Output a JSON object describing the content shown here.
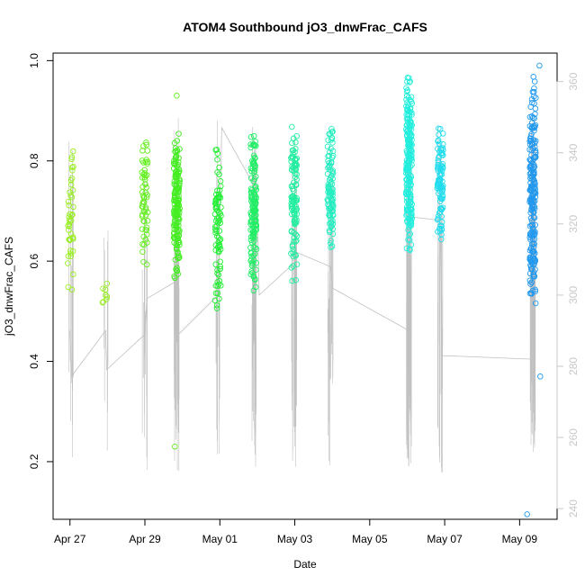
{
  "chart_data": {
    "type": "scatter",
    "title": "ATOM4 Southbound jO3_dnwFrac_CAFS",
    "xlabel": "Date",
    "ylabel": "jO3_dnwFrac_CAFS",
    "x_tick_labels": [
      "Apr 27",
      "Apr 29",
      "May 01",
      "May 03",
      "May 05",
      "May 07",
      "May 09"
    ],
    "x_tick_days": [
      0,
      2,
      4,
      6,
      8,
      10,
      12
    ],
    "x_origin_date": "Apr 27",
    "xlim_days": [
      -0.45,
      13.0
    ],
    "ylim": [
      0.085,
      1.015
    ],
    "y_ticks": [
      0.2,
      0.4,
      0.6,
      0.8,
      1.0
    ],
    "y_tick_labels": [
      "0.2",
      "0.4",
      "0.6",
      "0.8",
      "1.0"
    ],
    "y2lim": [
      237.0,
      368.0
    ],
    "y2_ticks": [
      240,
      260,
      280,
      300,
      320,
      340,
      360
    ],
    "y2_tick_labels": [
      "240",
      "260",
      "280",
      "300",
      "320",
      "340",
      "360"
    ],
    "line_color": "#c0c0c0",
    "clusters": [
      {
        "day": 0.02,
        "y_min": 0.51,
        "y_max": 0.87,
        "count": 45,
        "color": "#99ee22"
      },
      {
        "day": 0.95,
        "y_min": 0.515,
        "y_max": 0.575,
        "count": 8,
        "color": "#99ee22"
      },
      {
        "day": 2.0,
        "y_min": 0.585,
        "y_max": 0.86,
        "count": 60,
        "color": "#66ee22"
      },
      {
        "day": 2.85,
        "y_min": 0.55,
        "y_max": 0.87,
        "count": 160,
        "color": "#44ee22"
      },
      {
        "day": 3.95,
        "y_min": 0.485,
        "y_max": 0.86,
        "count": 80,
        "color": "#22ee33"
      },
      {
        "day": 4.9,
        "y_min": 0.53,
        "y_max": 0.875,
        "count": 140,
        "color": "#22ee66"
      },
      {
        "day": 5.98,
        "y_min": 0.55,
        "y_max": 0.875,
        "count": 110,
        "color": "#22eea0"
      },
      {
        "day": 6.95,
        "y_min": 0.6,
        "y_max": 0.875,
        "count": 100,
        "color": "#22eec0"
      },
      {
        "day": 9.05,
        "y_min": 0.6,
        "y_max": 0.99,
        "count": 220,
        "color": "#22eedd"
      },
      {
        "day": 9.88,
        "y_min": 0.63,
        "y_max": 0.88,
        "count": 100,
        "color": "#22ddee"
      },
      {
        "day": 12.35,
        "y_min": 0.49,
        "y_max": 0.99,
        "count": 220,
        "color": "#2299ee"
      }
    ],
    "outliers": [
      {
        "day": 2.85,
        "y": 0.93,
        "color": "#66ee22"
      },
      {
        "day": 2.8,
        "y": 0.23,
        "color": "#66ee22"
      },
      {
        "day": 12.55,
        "y": 0.37,
        "color": "#2299ee"
      },
      {
        "day": 12.53,
        "y": 0.99,
        "color": "#2299ee"
      },
      {
        "day": 12.2,
        "y": 0.095,
        "color": "#2299ee"
      }
    ],
    "right_axis_path": [
      [
        0.0,
        290
      ],
      [
        0.05,
        277
      ],
      [
        0.1,
        278
      ],
      [
        0.95,
        290
      ],
      [
        0.98,
        279
      ],
      [
        2.0,
        289
      ],
      [
        2.05,
        299
      ],
      [
        2.85,
        304
      ],
      [
        2.9,
        289
      ],
      [
        3.95,
        300
      ],
      [
        4.05,
        347
      ],
      [
        4.9,
        331
      ],
      [
        4.95,
        341
      ],
      [
        5.05,
        300
      ],
      [
        5.98,
        309
      ],
      [
        6.05,
        312
      ],
      [
        6.95,
        308
      ],
      [
        7.0,
        302
      ],
      [
        9.05,
        290
      ],
      [
        9.08,
        322
      ],
      [
        9.88,
        321
      ],
      [
        9.92,
        283
      ],
      [
        12.35,
        282
      ]
    ]
  }
}
